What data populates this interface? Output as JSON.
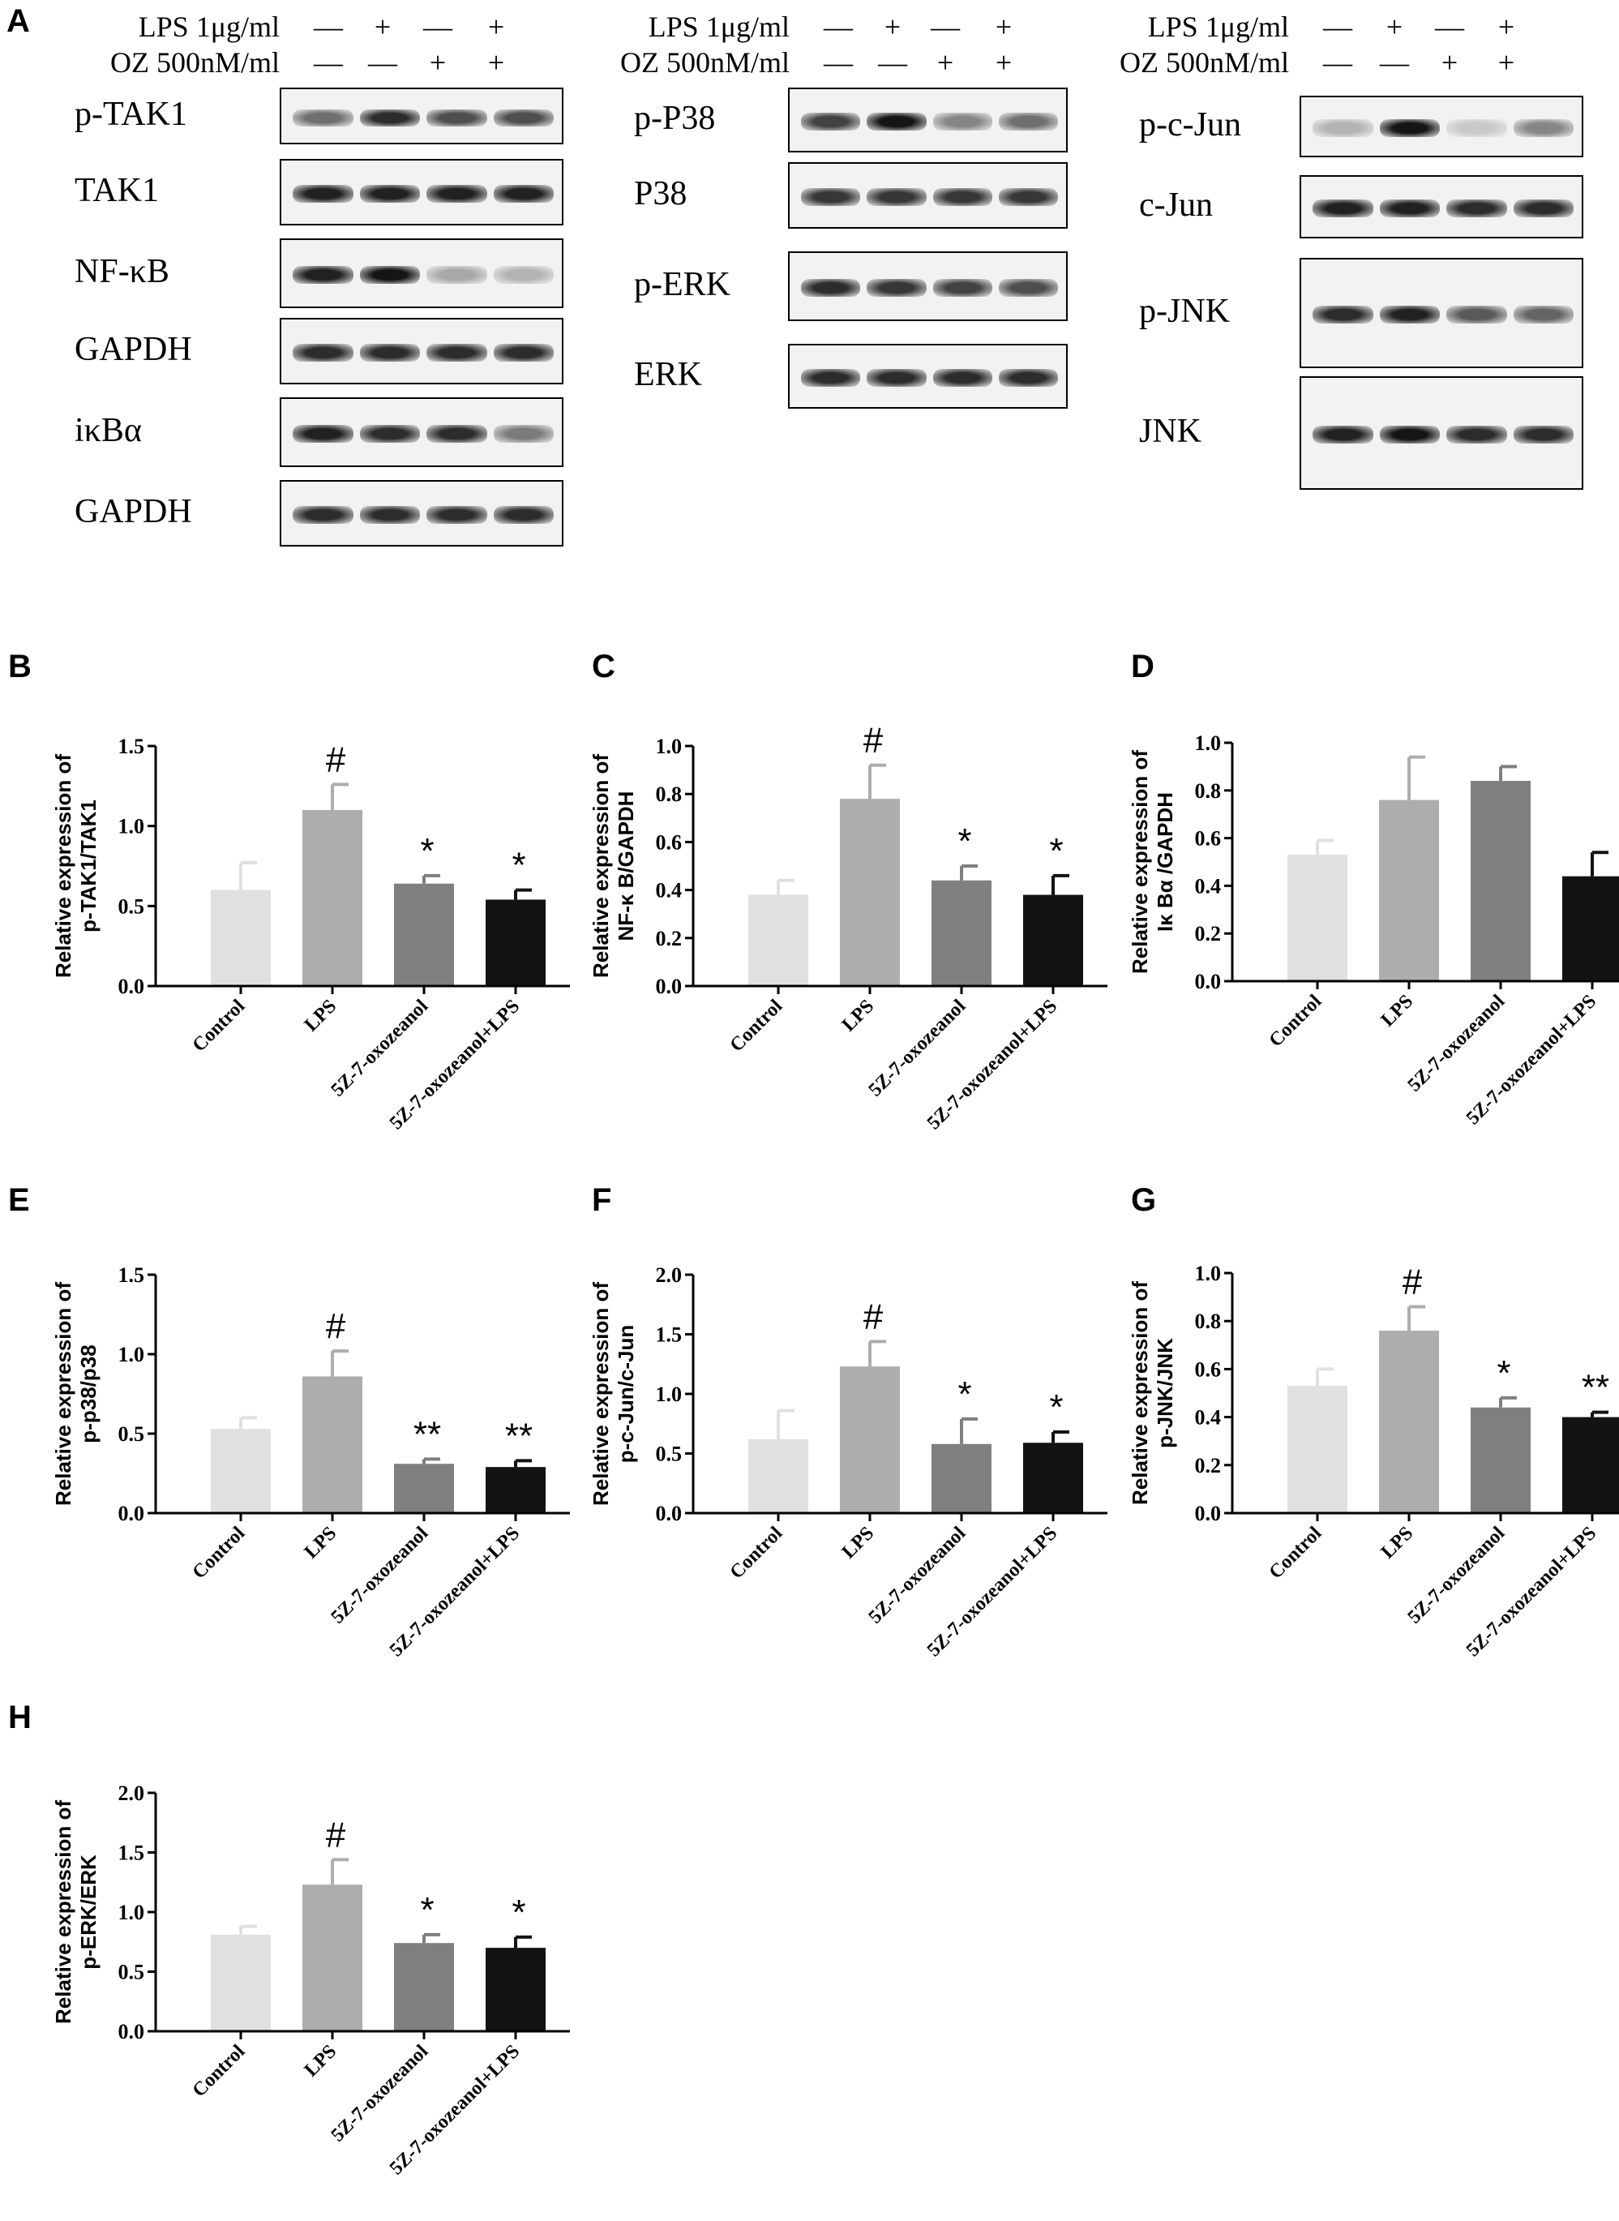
{
  "panel_A": {
    "letter": "A",
    "groups": [
      {
        "treatments": [
          {
            "label": "LPS 1μg/ml",
            "signs": [
              "—",
              "+",
              "—",
              "+"
            ]
          },
          {
            "label": "OZ 500nM/ml",
            "signs": [
              "—",
              "—",
              "+",
              "+"
            ]
          }
        ],
        "blots": [
          {
            "label": "p-TAK1",
            "bands": [
              0.55,
              0.85,
              0.7,
              0.7
            ]
          },
          {
            "label": "TAK1",
            "bands": [
              0.9,
              0.9,
              0.9,
              0.9
            ]
          },
          {
            "label": "NF-κB",
            "bands": [
              0.9,
              0.95,
              0.3,
              0.25
            ]
          },
          {
            "label": "GAPDH",
            "bands": [
              0.85,
              0.85,
              0.85,
              0.85
            ]
          },
          {
            "label": "iκBα",
            "bands": [
              0.9,
              0.85,
              0.85,
              0.5
            ]
          },
          {
            "label": "GAPDH",
            "bands": [
              0.85,
              0.85,
              0.85,
              0.85
            ]
          }
        ]
      },
      {
        "treatments": [
          {
            "label": "LPS 1μg/ml",
            "signs": [
              "—",
              "+",
              "—",
              "+"
            ]
          },
          {
            "label": "OZ 500nM/ml",
            "signs": [
              "—",
              "—",
              "+",
              "+"
            ]
          }
        ],
        "blots": [
          {
            "label": "p-P38",
            "bands": [
              0.75,
              0.95,
              0.45,
              0.55
            ]
          },
          {
            "label": "P38",
            "bands": [
              0.8,
              0.8,
              0.8,
              0.8
            ]
          },
          {
            "label": "p-ERK",
            "bands": [
              0.85,
              0.8,
              0.75,
              0.7
            ]
          },
          {
            "label": "ERK",
            "bands": [
              0.85,
              0.85,
              0.85,
              0.85
            ]
          }
        ]
      },
      {
        "treatments": [
          {
            "label": "LPS 1μg/ml",
            "signs": [
              "—",
              "+",
              "—",
              "+"
            ]
          },
          {
            "label": "OZ 500nM/ml",
            "signs": [
              "—",
              "—",
              "+",
              "+"
            ]
          }
        ],
        "blots": [
          {
            "label": "p-c-Jun",
            "bands": [
              0.25,
              0.95,
              0.15,
              0.45
            ]
          },
          {
            "label": "c-Jun",
            "bands": [
              0.9,
              0.9,
              0.85,
              0.85
            ]
          },
          {
            "label": "p-JNK",
            "bands": [
              0.85,
              0.9,
              0.65,
              0.6
            ]
          },
          {
            "label": "JNK",
            "bands": [
              0.9,
              0.95,
              0.85,
              0.85
            ]
          }
        ]
      }
    ]
  },
  "chart_data": [
    {
      "letter": "B",
      "type": "bar",
      "ylabel_line1": "Relative expression of",
      "ylabel_line2": "p-TAK1/TAK1",
      "ylim": [
        0,
        1.5
      ],
      "ticks": [
        "0.0",
        "0.5",
        "1.0",
        "1.5"
      ],
      "categories": [
        "Control",
        "LPS",
        "5Z-7-oxozeanol",
        "5Z-7-oxozeanol+LPS"
      ],
      "values": [
        0.6,
        1.1,
        0.64,
        0.54
      ],
      "errors": [
        0.17,
        0.16,
        0.05,
        0.06
      ],
      "marks": [
        "",
        "#",
        "*",
        "*"
      ]
    },
    {
      "letter": "C",
      "type": "bar",
      "ylabel_line1": "Relative expression of",
      "ylabel_line2": "NF-κ B/GAPDH",
      "ylim": [
        0,
        1.0
      ],
      "ticks": [
        "0.0",
        "0.2",
        "0.4",
        "0.6",
        "0.8",
        "1.0"
      ],
      "categories": [
        "Control",
        "LPS",
        "5Z-7-oxozeanol",
        "5Z-7-oxozeanol+LPS"
      ],
      "values": [
        0.38,
        0.78,
        0.44,
        0.38
      ],
      "errors": [
        0.06,
        0.14,
        0.06,
        0.08
      ],
      "marks": [
        "",
        "#",
        "*",
        "*"
      ]
    },
    {
      "letter": "D",
      "type": "bar",
      "ylabel_line1": "Relative expression of",
      "ylabel_line2": "Iκ Bα /GAPDH",
      "ylim": [
        0,
        1.0
      ],
      "ticks": [
        "0.0",
        "0.2",
        "0.4",
        "0.6",
        "0.8",
        "1.0"
      ],
      "categories": [
        "Control",
        "LPS",
        "5Z-7-oxozeanol",
        "5Z-7-oxozeanol+LPS"
      ],
      "values": [
        0.53,
        0.76,
        0.84,
        0.44
      ],
      "errors": [
        0.06,
        0.18,
        0.06,
        0.1
      ],
      "marks": [
        "",
        "",
        "",
        ""
      ]
    },
    {
      "letter": "E",
      "type": "bar",
      "ylabel_line1": "Relative expression of",
      "ylabel_line2": "p-p38/p38",
      "ylim": [
        0,
        1.5
      ],
      "ticks": [
        "0.0",
        "0.5",
        "1.0",
        "1.5"
      ],
      "categories": [
        "Control",
        "LPS",
        "5Z-7-oxozeanol",
        "5Z-7-oxozeanol+LPS"
      ],
      "values": [
        0.53,
        0.86,
        0.31,
        0.29
      ],
      "errors": [
        0.07,
        0.16,
        0.03,
        0.04
      ],
      "marks": [
        "",
        "#",
        "**",
        "**"
      ]
    },
    {
      "letter": "F",
      "type": "bar",
      "ylabel_line1": "Relative expression of",
      "ylabel_line2": "p-c-Jun/c-Jun",
      "ylim": [
        0,
        2.0
      ],
      "ticks": [
        "0.0",
        "0.5",
        "1.0",
        "1.5",
        "2.0"
      ],
      "categories": [
        "Control",
        "LPS",
        "5Z-7-oxozeanol",
        "5Z-7-oxozeanol+LPS"
      ],
      "values": [
        0.62,
        1.23,
        0.58,
        0.59
      ],
      "errors": [
        0.24,
        0.21,
        0.21,
        0.09
      ],
      "marks": [
        "",
        "#",
        "*",
        "*"
      ]
    },
    {
      "letter": "G",
      "type": "bar",
      "ylabel_line1": "Relative expression of",
      "ylabel_line2": "p-JNK/JNK",
      "ylim": [
        0,
        1.0
      ],
      "ticks": [
        "0.0",
        "0.2",
        "0.4",
        "0.6",
        "0.8",
        "1.0"
      ],
      "categories": [
        "Control",
        "LPS",
        "5Z-7-oxozeanol",
        "5Z-7-oxozeanol+LPS"
      ],
      "values": [
        0.53,
        0.76,
        0.44,
        0.4
      ],
      "errors": [
        0.07,
        0.1,
        0.04,
        0.02
      ],
      "marks": [
        "",
        "#",
        "*",
        "**"
      ]
    },
    {
      "letter": "H",
      "type": "bar",
      "ylabel_line1": "Relative expression of",
      "ylabel_line2": "p-ERK/ERK",
      "ylim": [
        0,
        2.0
      ],
      "ticks": [
        "0.0",
        "0.5",
        "1.0",
        "1.5",
        "2.0"
      ],
      "categories": [
        "Control",
        "LPS",
        "5Z-7-oxozeanol",
        "5Z-7-oxozeanol+LPS"
      ],
      "values": [
        0.81,
        1.23,
        0.74,
        0.7
      ],
      "errors": [
        0.07,
        0.21,
        0.07,
        0.09
      ],
      "marks": [
        "",
        "#",
        "*",
        "*"
      ]
    }
  ],
  "colors": {
    "bars": [
      "#e0e0e0",
      "#adadad",
      "#7f7f7f",
      "#131313"
    ],
    "axis": "#000000"
  }
}
